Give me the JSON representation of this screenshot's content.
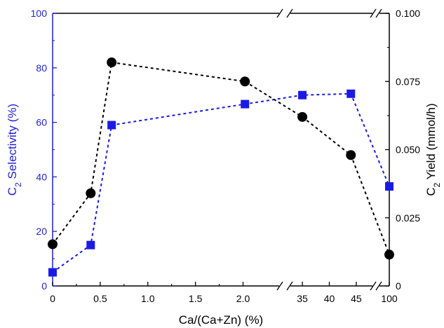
{
  "chart_data": {
    "type": "line",
    "xlabel": "Ca/(Ca+Zn) (%)",
    "ylabel_left": "C2 Selectivity (%)",
    "ylabel_right": "C2 Yield (mmol/h)",
    "ylim_left": [
      0,
      100
    ],
    "ylim_right": [
      0,
      0.1
    ],
    "x_axis_breaks": [
      "between 2.0 and 35",
      "between 45 and 100"
    ],
    "x_tick_labels": [
      "0",
      "0.5",
      "1.0",
      "1.5",
      "2.0",
      "35",
      "40",
      "45",
      "100"
    ],
    "y_left_tick_labels": [
      "0",
      "20",
      "40",
      "60",
      "80",
      "100"
    ],
    "y_right_tick_labels": [
      "0",
      "0.025",
      "0.050",
      "0.075",
      "0.100"
    ],
    "grid": false,
    "series": [
      {
        "axis": "left",
        "color": "#0000ff",
        "marker": "square",
        "line_style": "dashed",
        "points": [
          {
            "x": 0,
            "y": 5
          },
          {
            "x": 0.4,
            "y": 15
          },
          {
            "x": 0.62,
            "y": 59
          },
          {
            "x": 2.02,
            "y": 66.7
          },
          {
            "x": 35,
            "y": 70
          },
          {
            "x": 44,
            "y": 70.5
          },
          {
            "x": 100,
            "y": 36.5
          }
        ]
      },
      {
        "axis": "right",
        "color": "#000000",
        "marker": "circle",
        "line_style": "dashed",
        "points": [
          {
            "x": 0,
            "y": 0.0153
          },
          {
            "x": 0.4,
            "y": 0.034
          },
          {
            "x": 0.62,
            "y": 0.082
          },
          {
            "x": 2.02,
            "y": 0.075
          },
          {
            "x": 35,
            "y": 0.062
          },
          {
            "x": 44,
            "y": 0.048
          },
          {
            "x": 100,
            "y": 0.0115
          }
        ]
      }
    ]
  }
}
